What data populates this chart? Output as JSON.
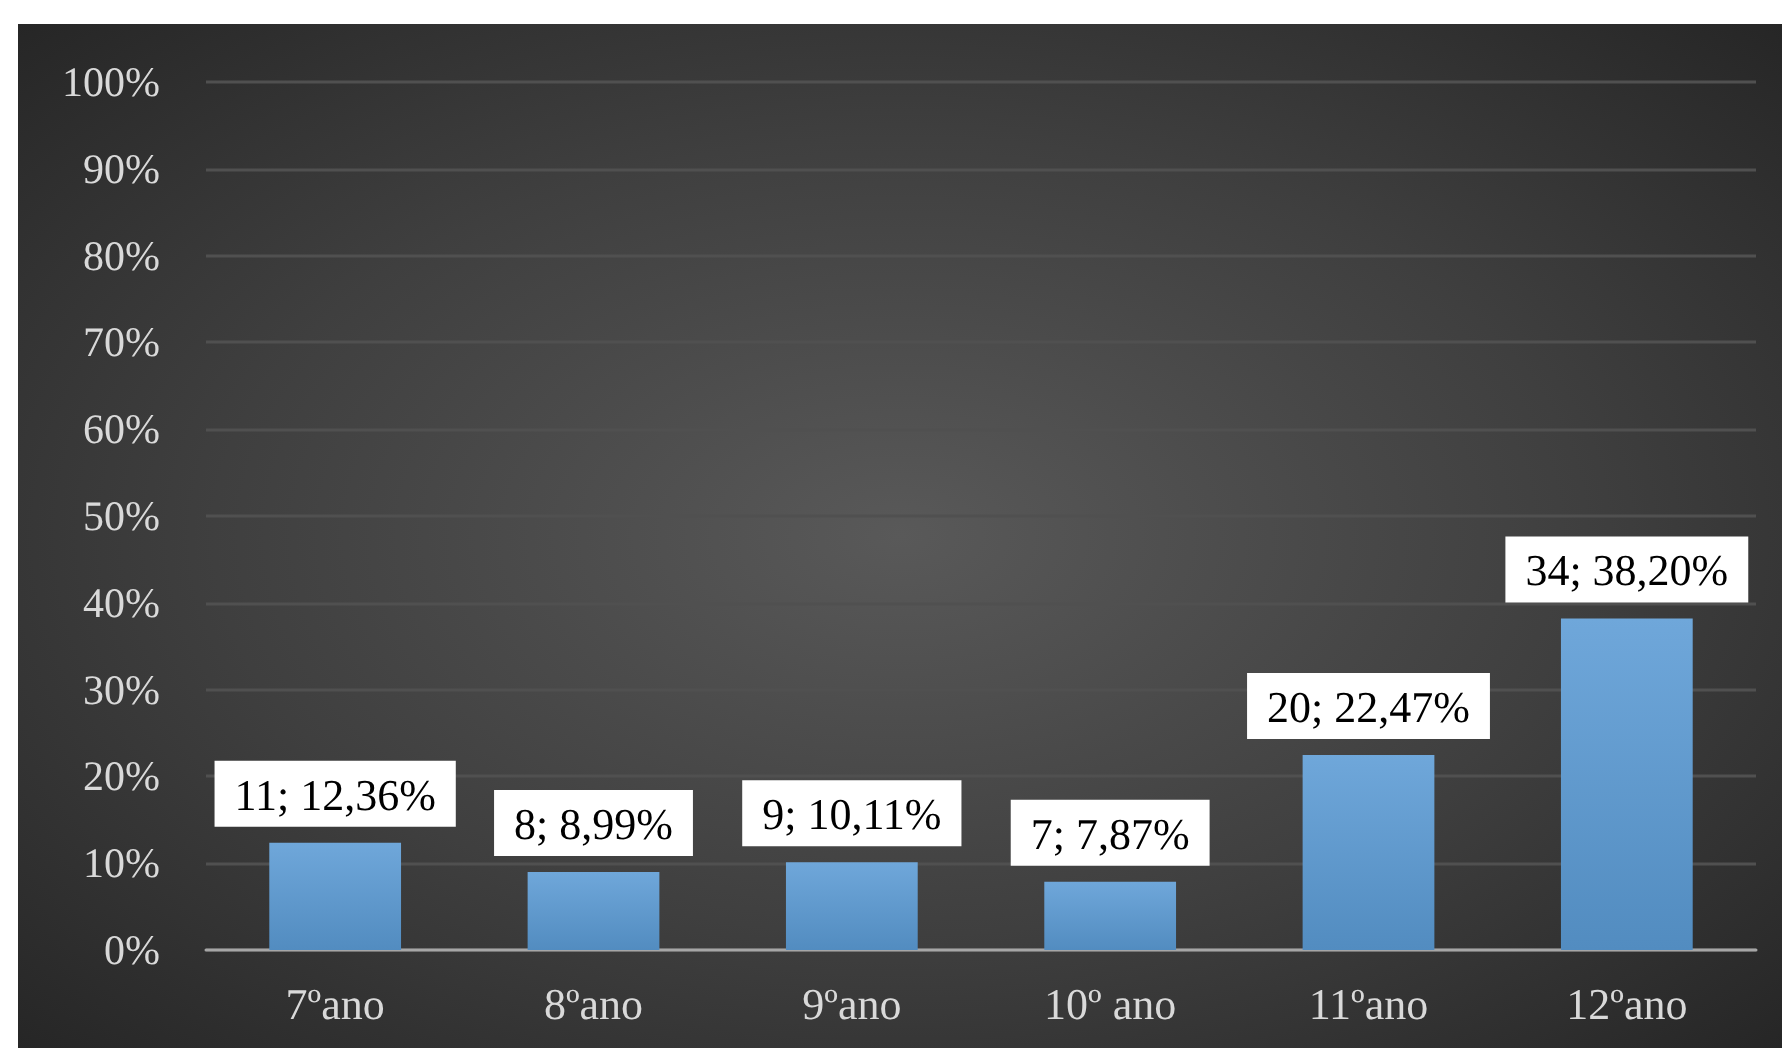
{
  "chart_data": {
    "type": "bar",
    "categories": [
      "7ºano",
      "8ºano",
      "9ºano",
      "10º ano",
      "11ºano",
      "12ºano"
    ],
    "values": [
      12.36,
      8.99,
      10.11,
      7.87,
      22.47,
      38.2
    ],
    "color": "#5b9bd5",
    "value_labels": [
      "11; 12,36%",
      "8; 8,99%",
      "9; 10,11%",
      "7; 7,87%",
      "20; 22,47%",
      "34; 38,20%"
    ],
    "ylim": [
      0,
      100
    ],
    "yticks": [
      {
        "value": 0,
        "label": "0%"
      },
      {
        "value": 10,
        "label": "10%"
      },
      {
        "value": 20,
        "label": "20%"
      },
      {
        "value": 30,
        "label": "30%"
      },
      {
        "value": 40,
        "label": "40%"
      },
      {
        "value": 50,
        "label": "50%"
      },
      {
        "value": 60,
        "label": "60%"
      },
      {
        "value": 70,
        "label": "70%"
      },
      {
        "value": 80,
        "label": "80%"
      },
      {
        "value": 90,
        "label": "90%"
      },
      {
        "value": 100,
        "label": "100%"
      }
    ],
    "grid": "y"
  }
}
